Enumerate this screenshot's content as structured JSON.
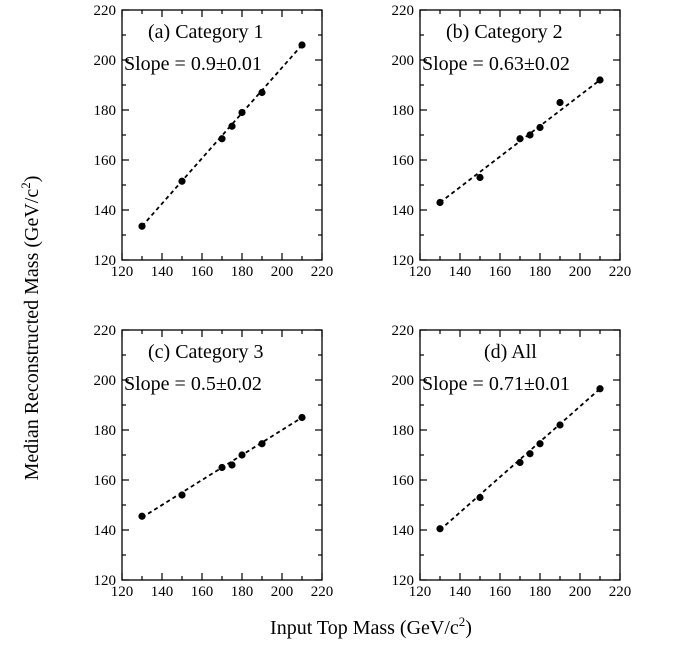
{
  "xlabel": {
    "text": "Input Top Mass (GeV/c",
    "sup": "2",
    "close": ")"
  },
  "ylabel": {
    "text": "Median Reconstructed Mass (GeV/c",
    "sup": "2",
    "close": ")"
  },
  "chart_data": [
    {
      "type": "scatter",
      "panel": "a",
      "title": "(a) Category 1",
      "annotation": "Slope = 0.9±0.01",
      "x": [
        130,
        150,
        170,
        175,
        180,
        190,
        210
      ],
      "y": [
        133.5,
        151.5,
        168.5,
        173.5,
        179,
        187,
        206
      ],
      "fit_line": {
        "style": "dashed",
        "x": [
          130,
          210
        ],
        "y": [
          133.5,
          206
        ]
      },
      "xlim": [
        120,
        220
      ],
      "ylim": [
        120,
        220
      ],
      "xticks": [
        120,
        140,
        160,
        180,
        200,
        220
      ],
      "yticks": [
        120,
        140,
        160,
        180,
        200,
        220
      ],
      "grid": false
    },
    {
      "type": "scatter",
      "panel": "b",
      "title": "(b) Category 2",
      "annotation": "Slope = 0.63±0.02",
      "x": [
        130,
        150,
        170,
        175,
        180,
        190,
        210
      ],
      "y": [
        143,
        153,
        168.5,
        170,
        173,
        183,
        192
      ],
      "fit_line": {
        "style": "dashed",
        "x": [
          130,
          210
        ],
        "y": [
          143,
          192
        ]
      },
      "xlim": [
        120,
        220
      ],
      "ylim": [
        120,
        220
      ],
      "xticks": [
        120,
        140,
        160,
        180,
        200,
        220
      ],
      "yticks": [
        120,
        140,
        160,
        180,
        200,
        220
      ],
      "grid": false
    },
    {
      "type": "scatter",
      "panel": "c",
      "title": "(c) Category 3",
      "annotation": "Slope = 0.5±0.02",
      "x": [
        130,
        150,
        170,
        175,
        180,
        190,
        210
      ],
      "y": [
        145.5,
        154,
        165,
        166,
        170,
        174.5,
        185
      ],
      "fit_line": {
        "style": "dashed",
        "x": [
          130,
          210
        ],
        "y": [
          145,
          185
        ]
      },
      "xlim": [
        120,
        220
      ],
      "ylim": [
        120,
        220
      ],
      "xticks": [
        120,
        140,
        160,
        180,
        200,
        220
      ],
      "yticks": [
        120,
        140,
        160,
        180,
        200,
        220
      ],
      "grid": false
    },
    {
      "type": "scatter",
      "panel": "d",
      "title": "(d) All",
      "annotation": "Slope = 0.71±0.01",
      "x": [
        130,
        150,
        170,
        175,
        180,
        190,
        210
      ],
      "y": [
        140.5,
        153,
        167,
        170.5,
        174.5,
        182,
        196.5
      ],
      "fit_line": {
        "style": "dashed",
        "x": [
          130,
          210
        ],
        "y": [
          140,
          196.5
        ]
      },
      "xlim": [
        120,
        220
      ],
      "ylim": [
        120,
        220
      ],
      "xticks": [
        120,
        140,
        160,
        180,
        200,
        220
      ],
      "yticks": [
        120,
        140,
        160,
        180,
        200,
        220
      ],
      "grid": false
    }
  ]
}
